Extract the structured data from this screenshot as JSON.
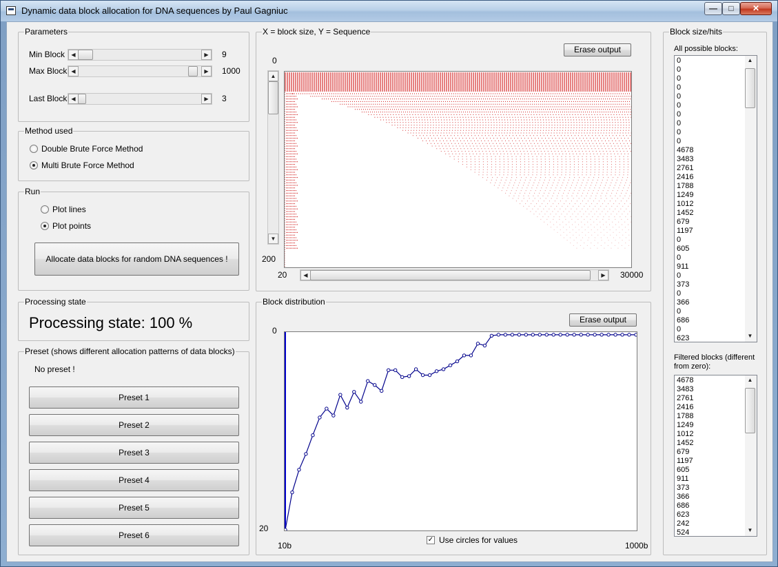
{
  "window": {
    "title": "Dynamic data block allocation for DNA sequences by Paul Gagniuc",
    "min_glyph": "—",
    "max_glyph": "□",
    "close_glyph": "✕"
  },
  "parameters": {
    "title": "Parameters",
    "min_block": {
      "label": "Min Block",
      "value": "9"
    },
    "max_block": {
      "label": "Max Block",
      "value": "1000"
    },
    "last_block": {
      "label": "Last Block",
      "value": "3"
    }
  },
  "method": {
    "title": "Method used",
    "options": [
      {
        "label": "Double Brute Force Method",
        "selected": false
      },
      {
        "label": "Multi Brute Force Method",
        "selected": true
      }
    ]
  },
  "run": {
    "title": "Run",
    "options": [
      {
        "label": "Plot lines",
        "selected": false
      },
      {
        "label": "Plot points",
        "selected": true
      }
    ],
    "allocate_button": "Allocate data blocks for random DNA sequences !"
  },
  "processing": {
    "title": "Processing state",
    "text": "Processing state: 100 %"
  },
  "preset": {
    "title": "Preset (shows different allocation patterns of data blocks)",
    "status": "No preset !",
    "buttons": [
      "Preset 1",
      "Preset 2",
      "Preset 3",
      "Preset 4",
      "Preset 5",
      "Preset 6"
    ]
  },
  "sequence_plot": {
    "title": "X = block size, Y = Sequence",
    "erase_label": "Erase output",
    "y_top": "0",
    "y_bottom": "200",
    "x_left": "20",
    "x_right": "30000",
    "point_color": "#cc0000"
  },
  "distribution": {
    "title": "Block distribution",
    "erase_label": "Erase output",
    "y_top": "0",
    "y_bottom": "20",
    "x_left": "10b",
    "x_right": "1000b",
    "circles_label": "Use circles for values",
    "circles_checked": true,
    "line_color": "#00008b"
  },
  "chart_data": {
    "type": "line",
    "title": "Block distribution",
    "xlabel": "",
    "ylabel": "",
    "x_range_labels": [
      "10b",
      "1000b"
    ],
    "ylim": [
      0,
      20
    ],
    "y_inverted": true,
    "series": [
      {
        "values": [
          20,
          16.2,
          13.9,
          12.3,
          10.4,
          8.6,
          7.7,
          8.4,
          6.3,
          7.6,
          6.0,
          7.0,
          4.9,
          5.3,
          5.9,
          3.8,
          3.8,
          4.5,
          4.4,
          3.7,
          4.3,
          4.3,
          3.9,
          3.7,
          3.3,
          2.9,
          2.3,
          2.3,
          1.1,
          1.3,
          0.3,
          0.2,
          0.2,
          0.2,
          0.2,
          0.2,
          0.2,
          0.2,
          0.2,
          0.2,
          0.2,
          0.2,
          0.2,
          0.2,
          0.2,
          0.2,
          0.2,
          0.2,
          0.2,
          0.2,
          0.2,
          0.2
        ]
      }
    ]
  },
  "block_hits": {
    "title": "Block size/hits",
    "all_label": "All possible blocks:",
    "all_items": [
      "0",
      "0",
      "0",
      "0",
      "0",
      "0",
      "0",
      "0",
      "0",
      "0",
      "4678",
      "3483",
      "2761",
      "2416",
      "1788",
      "1249",
      "1012",
      "1452",
      "679",
      "1197",
      "0",
      "605",
      "0",
      "911",
      "0",
      "373",
      "0",
      "366",
      "0",
      "686",
      "0",
      "623"
    ],
    "filtered_label": "Filtered blocks (different from zero):",
    "filtered_items": [
      "4678",
      "3483",
      "2761",
      "2416",
      "1788",
      "1249",
      "1012",
      "1452",
      "679",
      "1197",
      "605",
      "911",
      "373",
      "366",
      "686",
      "623",
      "242",
      "524"
    ]
  }
}
